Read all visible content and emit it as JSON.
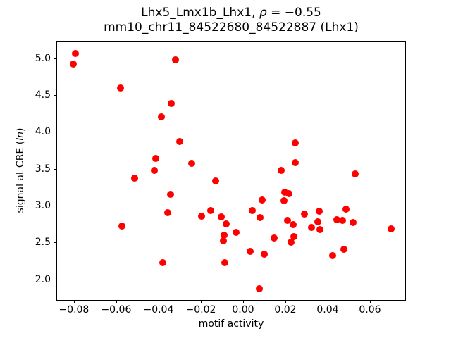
{
  "title": {
    "line1_prefix": "Lhx5_Lmx1b_Lhx1, ",
    "line1_rho": "ρ",
    "line1_suffix": " = −0.55",
    "line2": "mm10_chr11_84522680_84522887 (Lhx1)"
  },
  "axis_labels": {
    "xlabel": "motif activity",
    "ylabel_prefix": "signal at CRE (",
    "ylabel_italic": "ln",
    "ylabel_suffix": ")"
  },
  "chart_data": {
    "type": "scatter",
    "title": "Lhx5_Lmx1b_Lhx1, ρ = −0.55",
    "subtitle": "mm10_chr11_84522680_84522887 (Lhx1)",
    "xlabel": "motif activity",
    "ylabel": "signal at CRE (ln)",
    "legend": null,
    "grid": false,
    "marker_color": "#ff0000",
    "xlim": [
      -0.0883,
      0.077
    ],
    "ylim": [
      1.71,
      5.235
    ],
    "xticks": {
      "values": [
        -0.08,
        -0.06,
        -0.04,
        -0.02,
        0.0,
        0.02,
        0.04,
        0.06
      ],
      "labels": [
        "−0.08",
        "−0.06",
        "−0.04",
        "−0.02",
        "0.00",
        "0.02",
        "0.04",
        "0.06"
      ]
    },
    "yticks": {
      "values": [
        2.0,
        2.5,
        3.0,
        3.5,
        4.0,
        4.5,
        5.0
      ],
      "labels": [
        "2.0",
        "2.5",
        "3.0",
        "3.5",
        "4.0",
        "4.5",
        "5.0"
      ]
    },
    "points": [
      [
        -0.0797,
        5.07
      ],
      [
        -0.0807,
        4.93
      ],
      [
        -0.0323,
        4.99
      ],
      [
        -0.0583,
        4.6
      ],
      [
        -0.0343,
        4.39
      ],
      [
        -0.039,
        4.21
      ],
      [
        -0.0303,
        3.88
      ],
      [
        -0.0417,
        3.65
      ],
      [
        -0.0423,
        3.49
      ],
      [
        -0.0247,
        3.58
      ],
      [
        0.0243,
        3.86
      ],
      [
        0.0244,
        3.59
      ],
      [
        0.0177,
        3.49
      ],
      [
        0.0528,
        3.44
      ],
      [
        -0.0517,
        3.38
      ],
      [
        -0.0347,
        3.16
      ],
      [
        -0.036,
        2.91
      ],
      [
        -0.0133,
        3.34
      ],
      [
        -0.02,
        2.87
      ],
      [
        -0.0157,
        2.94
      ],
      [
        -0.0107,
        2.86
      ],
      [
        -0.0083,
        2.76
      ],
      [
        -0.0093,
        2.61
      ],
      [
        -0.0097,
        2.53
      ],
      [
        -0.0577,
        2.73
      ],
      [
        -0.0383,
        2.24
      ],
      [
        -0.009,
        2.24
      ],
      [
        0.0193,
        3.19
      ],
      [
        0.0215,
        3.17
      ],
      [
        0.019,
        3.08
      ],
      [
        0.0087,
        3.09
      ],
      [
        0.0041,
        2.94
      ],
      [
        0.0078,
        2.85
      ],
      [
        0.0288,
        2.89
      ],
      [
        0.0357,
        2.93
      ],
      [
        0.0206,
        2.81
      ],
      [
        0.0233,
        2.75
      ],
      [
        0.0351,
        2.79
      ],
      [
        0.0321,
        2.71
      ],
      [
        0.036,
        2.68
      ],
      [
        -0.0037,
        2.65
      ],
      [
        0.0144,
        2.57
      ],
      [
        0.0236,
        2.59
      ],
      [
        0.0222,
        2.51
      ],
      [
        0.0441,
        2.82
      ],
      [
        0.0468,
        2.81
      ],
      [
        0.0482,
        2.96
      ],
      [
        0.0516,
        2.78
      ],
      [
        0.0697,
        2.69
      ],
      [
        0.0031,
        2.39
      ],
      [
        0.0098,
        2.35
      ],
      [
        0.0421,
        2.33
      ],
      [
        0.0473,
        2.42
      ],
      [
        0.0073,
        1.88
      ]
    ]
  }
}
